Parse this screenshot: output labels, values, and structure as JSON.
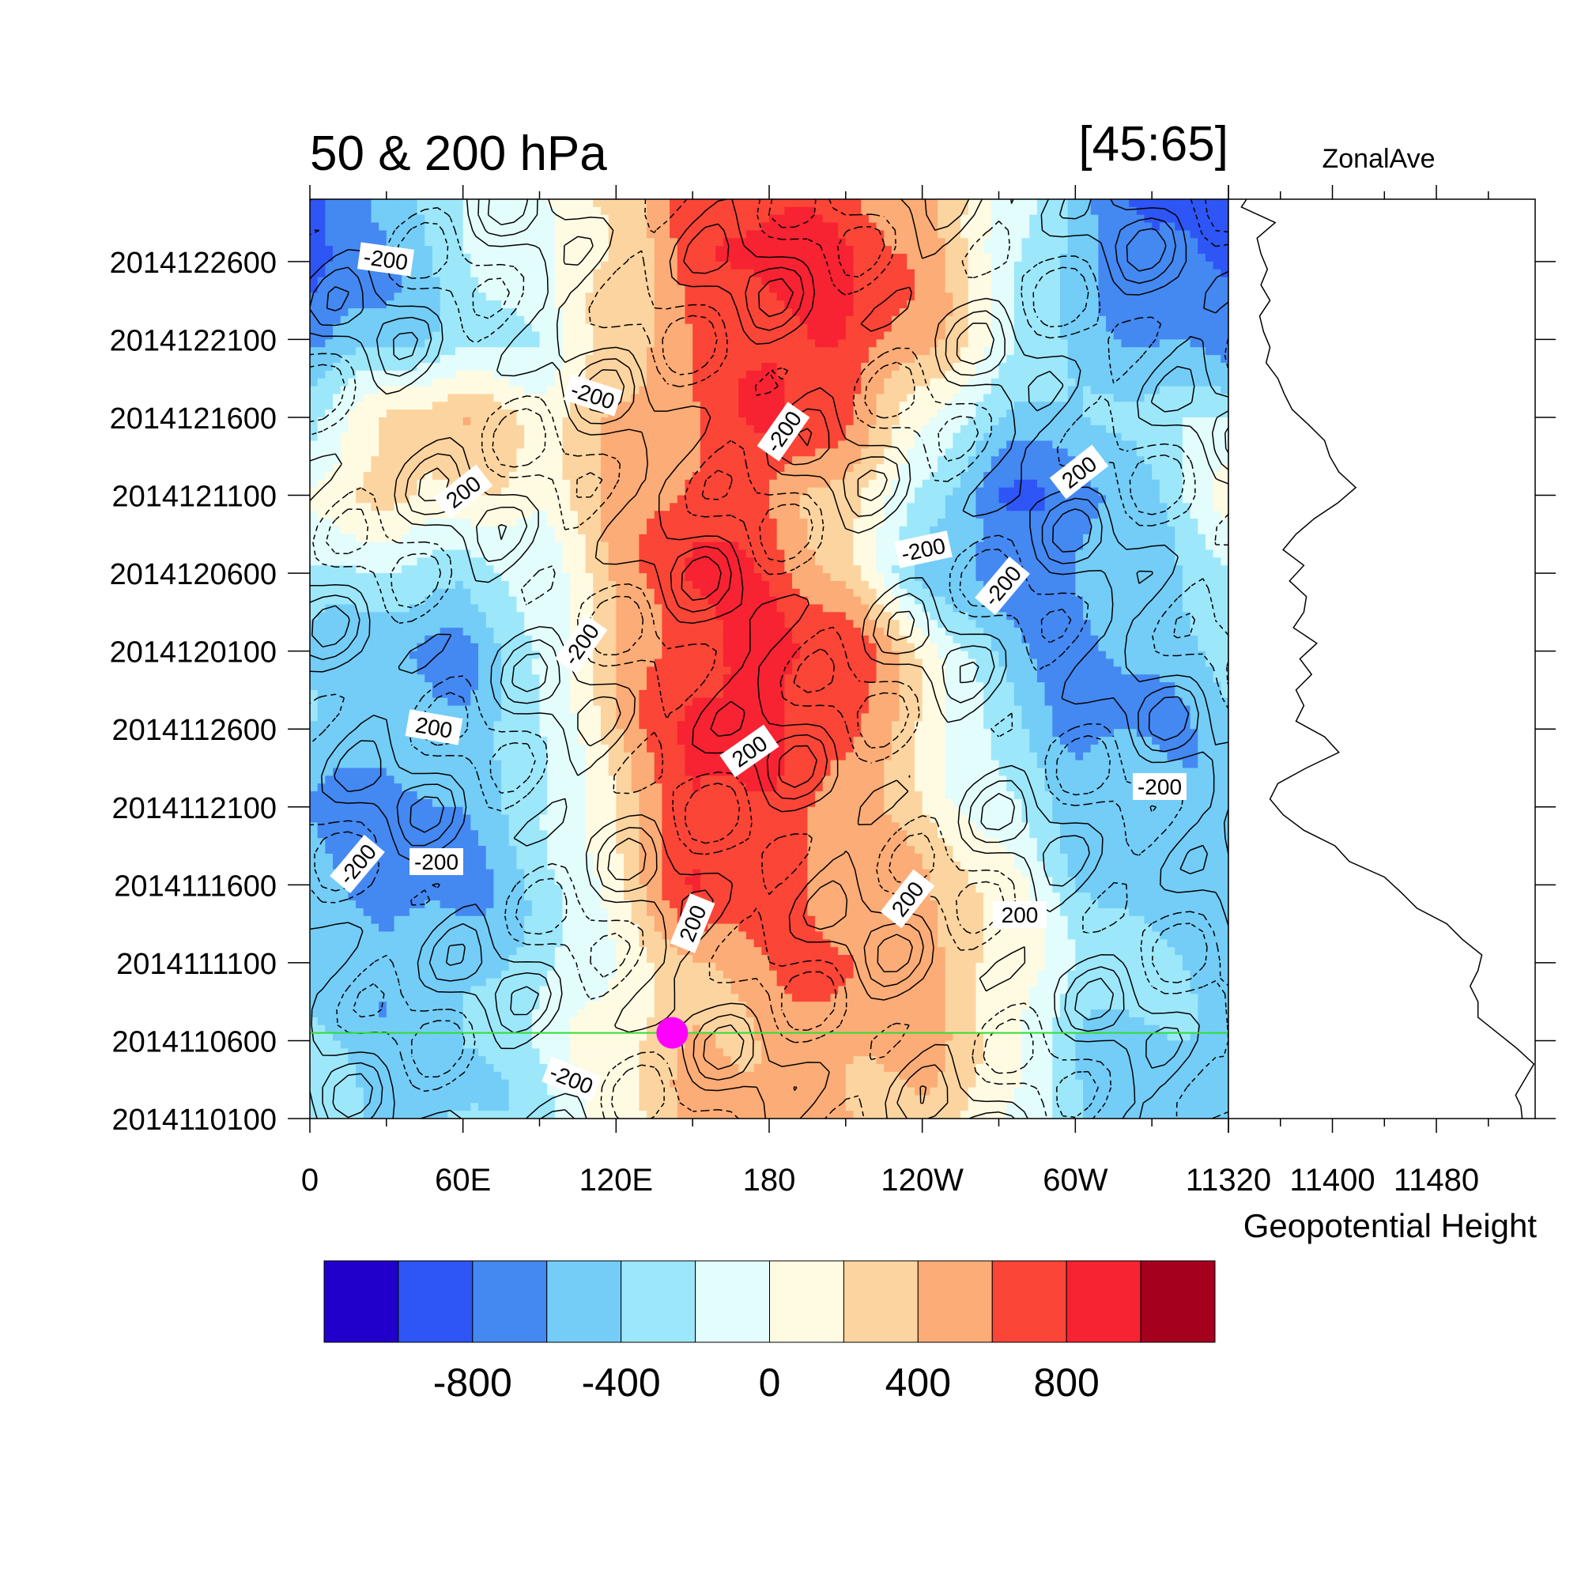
{
  "chart_data": {
    "type": "heatmap",
    "title_left": "50 & 200 hPa",
    "title_right": "[45:65]",
    "side_panel_title": "ZonalAve",
    "side_panel_xlabel": "Geopotential Height",
    "x_ticks": [
      "0",
      "60E",
      "120E",
      "180",
      "120W",
      "60W"
    ],
    "x_tick_values": [
      0,
      60,
      120,
      180,
      240,
      300
    ],
    "xlim": [
      0,
      360
    ],
    "y_ticks": [
      "2014110100",
      "2014110600",
      "2014111100",
      "2014111600",
      "2014112100",
      "2014112600",
      "2014120100",
      "2014120600",
      "2014121100",
      "2014121600",
      "2014122100",
      "2014122600"
    ],
    "y_tick_days": [
      0,
      5,
      10,
      15,
      20,
      25,
      30,
      35,
      40,
      45,
      50,
      55
    ],
    "ylim_days": [
      0,
      59
    ],
    "colorbar": {
      "labels": [
        "-800",
        "-400",
        "0",
        "400",
        "800"
      ],
      "label_values": [
        -800,
        -400,
        0,
        400,
        800
      ],
      "levels": [
        -1000,
        -800,
        -600,
        -400,
        -200,
        0,
        200,
        400,
        600,
        800,
        1000
      ],
      "colors": [
        "#2200cc",
        "#2e55f5",
        "#4488f2",
        "#73cdf7",
        "#9de7fa",
        "#e3fcfc",
        "#fffbe3",
        "#fcd4a0",
        "#fcac76",
        "#fa4537",
        "#f72232",
        "#a6001f"
      ]
    },
    "contour_labels": [
      "-200",
      "-200",
      "-200",
      "200",
      "200",
      "-200",
      "-200",
      "-200",
      "200",
      "200",
      "-200",
      "200",
      "-200",
      "200",
      "200",
      "-200",
      "-200"
    ],
    "side_panel_ticks": [
      "11320",
      "11400",
      "11480"
    ],
    "side_panel_tick_values": [
      11320,
      11400,
      11480
    ],
    "side_panel_xlim": [
      11320,
      11556
    ],
    "zonal_ave": {
      "day": [
        0,
        0.8,
        1.5,
        2.5,
        3.5,
        4.5,
        5.5,
        6.5,
        7.5,
        8.5,
        9.5,
        10.5,
        11.5,
        12.5,
        13.5,
        14.5,
        15.5,
        16.5,
        17.5,
        18.5,
        19.5,
        20.5,
        21.5,
        22.5,
        23.5,
        24.5,
        25.5,
        26.5,
        27.5,
        28.5,
        29.5,
        30.5,
        31.5,
        32.5,
        33.5,
        34.5,
        35.5,
        36.5,
        37.5,
        38.5,
        39.5,
        40.5,
        41.5,
        42.5,
        43.5,
        44.5,
        45.5,
        46.5,
        47.5,
        48.5,
        49.5,
        50.5,
        51.5,
        52.5,
        53.5,
        54.5,
        55.5,
        56.5,
        57.5,
        58.5,
        59
      ],
      "z": [
        11546,
        11545,
        11541,
        11548,
        11555,
        11542,
        11527,
        11512,
        11512,
        11506,
        11512,
        11515,
        11500,
        11488,
        11465,
        11453,
        11440,
        11413,
        11402,
        11378,
        11362,
        11352,
        11358,
        11380,
        11405,
        11394,
        11372,
        11378,
        11372,
        11384,
        11375,
        11388,
        11370,
        11378,
        11380,
        11367,
        11378,
        11362,
        11372,
        11386,
        11404,
        11418,
        11405,
        11398,
        11394,
        11382,
        11369,
        11363,
        11358,
        11349,
        11352,
        11347,
        11344,
        11352,
        11345,
        11350,
        11345,
        11342,
        11356,
        11330,
        11334
      ]
    },
    "marker": {
      "lon": 142,
      "day": 5.5,
      "color": "#ff00ff"
    },
    "ref_line": {
      "day": 5.5,
      "color": "#33dd33"
    },
    "shading": {
      "lon_nodes": [
        0,
        30,
        60,
        90,
        120,
        150,
        180,
        210,
        240,
        270,
        300,
        330,
        360
      ],
      "day_nodes": [
        0,
        5,
        10,
        15,
        20,
        25,
        30,
        35,
        40,
        45,
        50,
        55,
        59
      ],
      "values": [
        [
          -350,
          -500,
          -450,
          -250,
          150,
          400,
          450,
          450,
          350,
          50,
          -450,
          -500,
          -350
        ],
        [
          -400,
          -500,
          -400,
          -200,
          100,
          400,
          500,
          450,
          450,
          150,
          -350,
          -450,
          -400
        ],
        [
          -450,
          -550,
          -500,
          -300,
          100,
          350,
          550,
          650,
          550,
          200,
          -200,
          -400,
          -450
        ],
        [
          -550,
          -700,
          -650,
          -350,
          100,
          800,
          750,
          500,
          400,
          100,
          -350,
          -500,
          -550
        ],
        [
          -600,
          -750,
          -600,
          -300,
          250,
          850,
          700,
          450,
          200,
          -100,
          -450,
          -550,
          -600
        ],
        [
          -450,
          -500,
          -450,
          -200,
          350,
          850,
          800,
          750,
          200,
          -350,
          -700,
          -600,
          -450
        ],
        [
          -400,
          -550,
          -700,
          -250,
          350,
          800,
          900,
          750,
          150,
          -450,
          -650,
          -550,
          -400
        ],
        [
          -200,
          -300,
          -350,
          -100,
          450,
          850,
          700,
          300,
          -400,
          -750,
          -650,
          -450,
          -200
        ],
        [
          50,
          300,
          250,
          50,
          400,
          700,
          650,
          250,
          -250,
          -850,
          -700,
          -400,
          50
        ],
        [
          -200,
          200,
          350,
          150,
          450,
          550,
          850,
          600,
          100,
          -350,
          -500,
          -300,
          -200
        ],
        [
          -700,
          -500,
          -250,
          -150,
          250,
          550,
          850,
          800,
          500,
          -100,
          -500,
          -550,
          -700
        ],
        [
          -850,
          -600,
          -300,
          -100,
          250,
          750,
          900,
          800,
          550,
          0,
          -500,
          -800,
          -850
        ],
        [
          -900,
          -550,
          -250,
          0,
          300,
          700,
          750,
          700,
          500,
          0,
          -550,
          -900,
          -900
        ]
      ]
    }
  }
}
